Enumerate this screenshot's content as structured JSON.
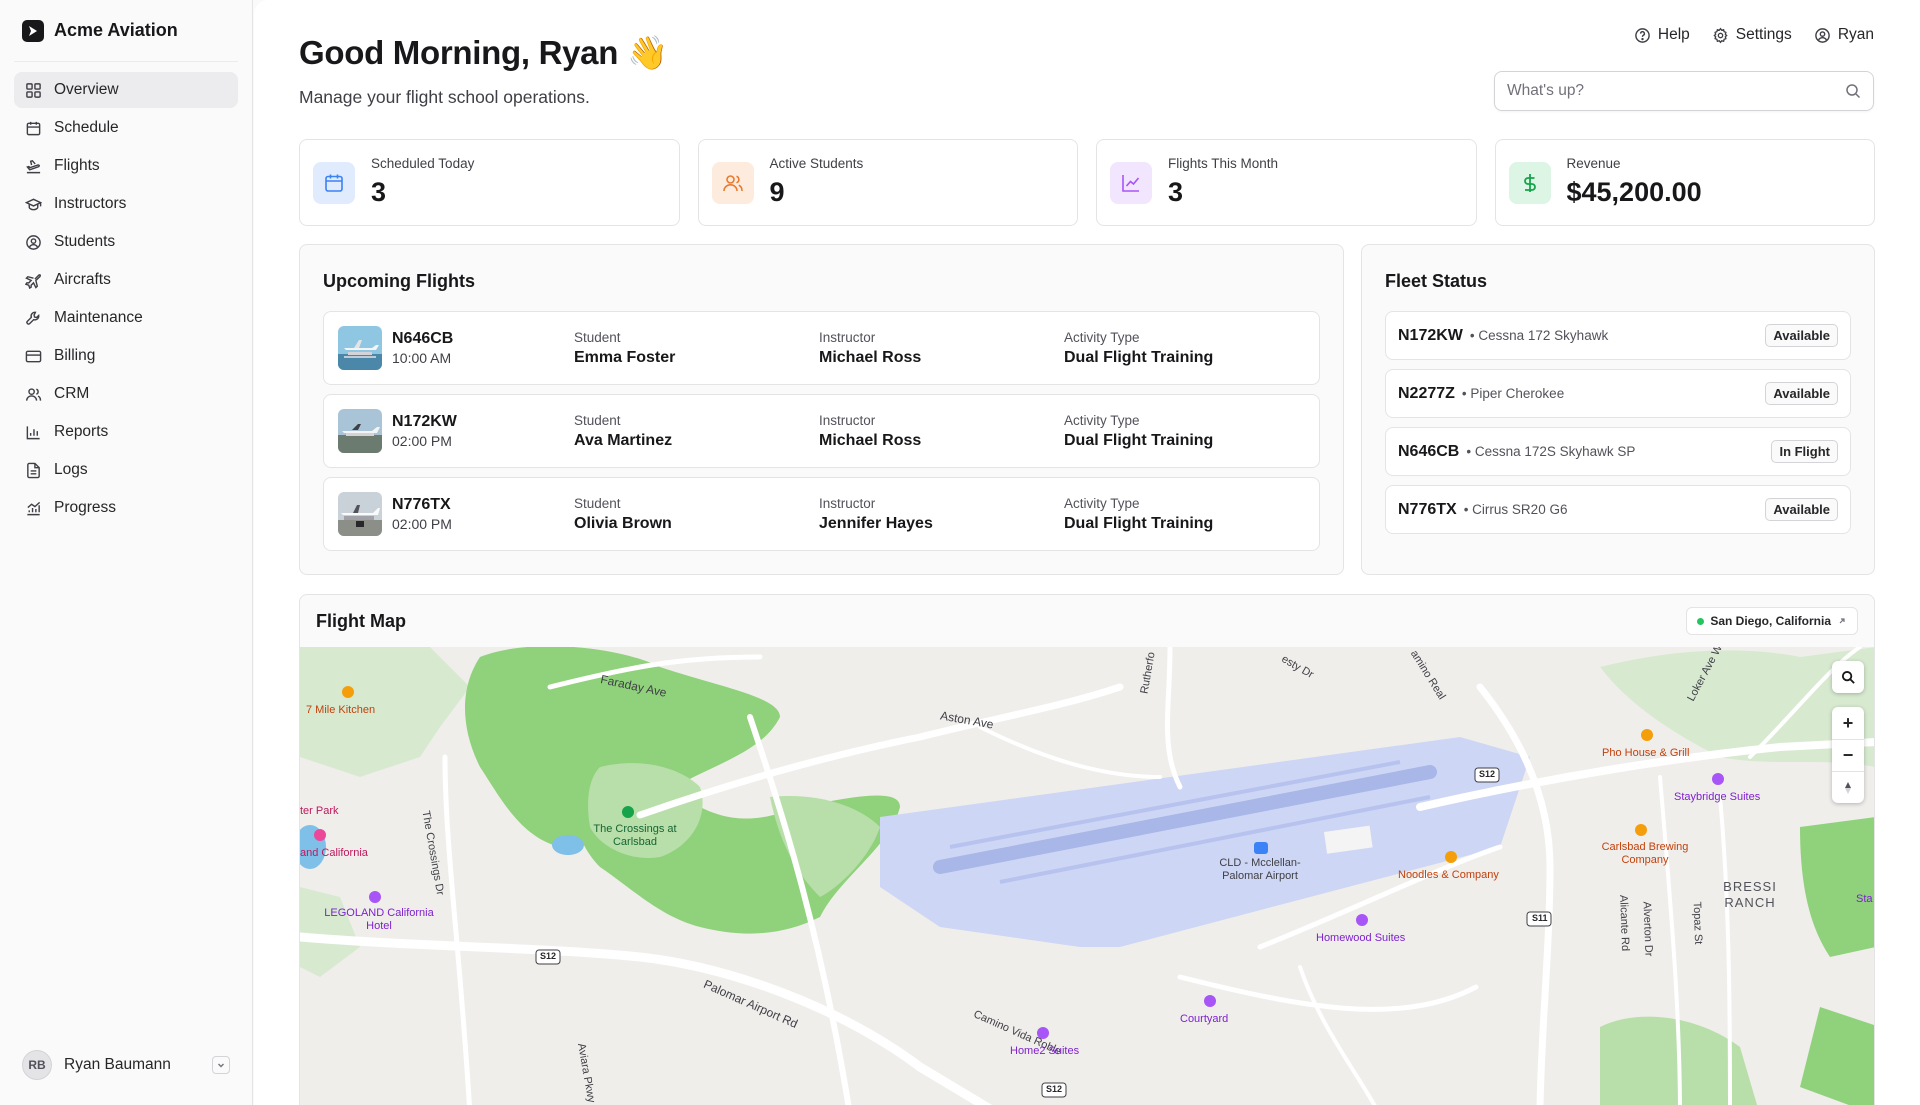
{
  "brand": {
    "name": "Acme Aviation"
  },
  "sidebar": {
    "items": [
      {
        "label": "Overview",
        "icon": "grid-icon",
        "active": true
      },
      {
        "label": "Schedule",
        "icon": "calendar-icon"
      },
      {
        "label": "Flights",
        "icon": "plane-takeoff-icon"
      },
      {
        "label": "Instructors",
        "icon": "graduation-cap-icon"
      },
      {
        "label": "Students",
        "icon": "user-circle-icon"
      },
      {
        "label": "Aircrafts",
        "icon": "plane-icon"
      },
      {
        "label": "Maintenance",
        "icon": "wrench-icon"
      },
      {
        "label": "Billing",
        "icon": "credit-card-icon"
      },
      {
        "label": "CRM",
        "icon": "users-icon"
      },
      {
        "label": "Reports",
        "icon": "bar-chart-icon"
      },
      {
        "label": "Logs",
        "icon": "file-text-icon"
      },
      {
        "label": "Progress",
        "icon": "chart-progress-icon"
      }
    ],
    "user": {
      "initials": "RB",
      "name": "Ryan Baumann"
    }
  },
  "topnav": {
    "help": "Help",
    "settings": "Settings",
    "user": "Ryan"
  },
  "header": {
    "greeting": "Good Morning, Ryan 👋",
    "subtitle": "Manage your flight school operations."
  },
  "search": {
    "placeholder": "What's up?",
    "value": ""
  },
  "stats": [
    {
      "label": "Scheduled Today",
      "value": "3",
      "icon": "calendar-icon",
      "color": "#3b82f6",
      "bg": "#e0ecfd"
    },
    {
      "label": "Active Students",
      "value": "9",
      "icon": "users-icon",
      "color": "#ea7a2d",
      "bg": "#fdebdd"
    },
    {
      "label": "Flights This Month",
      "value": "3",
      "icon": "line-chart-icon",
      "color": "#a855f7",
      "bg": "#f1e6fd"
    },
    {
      "label": "Revenue",
      "value": "$45,200.00",
      "icon": "dollar-icon",
      "color": "#16a34a",
      "bg": "#dcf5e5"
    }
  ],
  "upcoming": {
    "title": "Upcoming Flights",
    "student_label": "Student",
    "instructor_label": "Instructor",
    "activity_label": "Activity Type",
    "flights": [
      {
        "tail": "N646CB",
        "time": "10:00 AM",
        "student": "Emma Foster",
        "instructor": "Michael Ross",
        "activity": "Dual Flight Training"
      },
      {
        "tail": "N172KW",
        "time": "02:00 PM",
        "student": "Ava Martinez",
        "instructor": "Michael Ross",
        "activity": "Dual Flight Training"
      },
      {
        "tail": "N776TX",
        "time": "02:00 PM",
        "student": "Olivia Brown",
        "instructor": "Jennifer Hayes",
        "activity": "Dual Flight Training"
      }
    ]
  },
  "fleet": {
    "title": "Fleet Status",
    "aircraft": [
      {
        "tail": "N172KW",
        "model": "• Cessna 172 Skyhawk",
        "status": "Available"
      },
      {
        "tail": "N2277Z",
        "model": "• Piper Cherokee",
        "status": "Available"
      },
      {
        "tail": "N646CB",
        "model": "• Cessna 172S Skyhawk SP",
        "status": "In Flight"
      },
      {
        "tail": "N776TX",
        "model": "• Cirrus SR20 G6",
        "status": "Available"
      }
    ]
  },
  "map": {
    "title": "Flight Map",
    "location": "San Diego, California",
    "labels": {
      "faraday": "Faraday Ave",
      "aston": "Aston Ave",
      "rutherford": "Rutherfo",
      "vesty": "esty Dr",
      "camino_real": "amino Real",
      "loker": "Loker Ave W",
      "kitchen": "7 Mile Kitchen",
      "park": "ter Park",
      "crossings_dr": "The Crossings Dr",
      "crossings": "The Crossings at Carlsbad",
      "legoland_ca": "and California",
      "legoland": "LEGOLAND California Hotel",
      "palomar_rd": "Palomar Airport Rd",
      "camino_vida": "Camino Vida Roble",
      "airport": "CLD - Mcclellan-Palomar Airport",
      "noodles": "Noodles & Company",
      "homewood": "Homewood Suites",
      "courtyard": "Courtyard",
      "home2": "Home2 Suites",
      "pho": "Pho House & Grill",
      "staybridge": "Staybridge Suites",
      "brewing": "Carlsbad Brewing Company",
      "bressi": "BRESSI RANCH",
      "alicante": "Alicante Rd",
      "alverton": "Alverton Dr",
      "topaz": "Topaz St",
      "aviara": "Aviara Pkwy",
      "s12": "S12",
      "s11": "S11",
      "sta": "Sta"
    }
  }
}
